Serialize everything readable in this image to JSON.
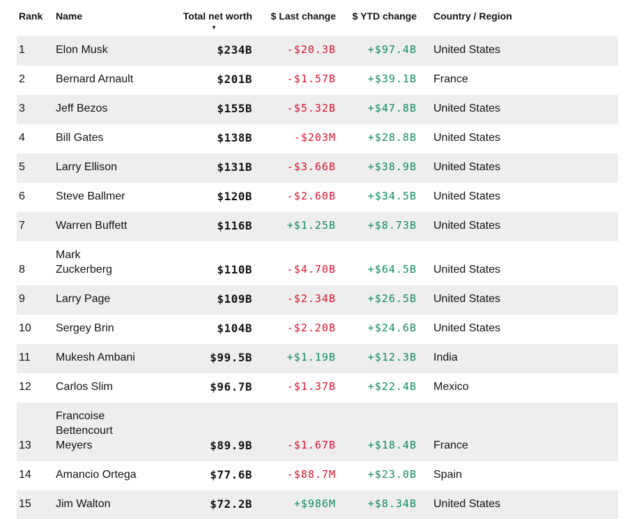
{
  "table": {
    "columns": [
      "Rank",
      "Name",
      "Total net worth",
      "$ Last change",
      "$ YTD change",
      "Country / Region"
    ],
    "sort": {
      "column": "Total net worth",
      "direction": "descending",
      "icon": "▼"
    },
    "rows": [
      {
        "rank": "1",
        "name": "Elon Musk",
        "net_worth": "$234B",
        "last_change": "-$20.3B",
        "last_dir": "down",
        "ytd_change": "+$97.4B",
        "ytd_dir": "up",
        "country": "United States"
      },
      {
        "rank": "2",
        "name": "Bernard Arnault",
        "net_worth": "$201B",
        "last_change": "-$1.57B",
        "last_dir": "down",
        "ytd_change": "+$39.1B",
        "ytd_dir": "up",
        "country": "France"
      },
      {
        "rank": "3",
        "name": "Jeff Bezos",
        "net_worth": "$155B",
        "last_change": "-$5.32B",
        "last_dir": "down",
        "ytd_change": "+$47.8B",
        "ytd_dir": "up",
        "country": "United States"
      },
      {
        "rank": "4",
        "name": "Bill Gates",
        "net_worth": "$138B",
        "last_change": "-$203M",
        "last_dir": "down",
        "ytd_change": "+$28.8B",
        "ytd_dir": "up",
        "country": "United States"
      },
      {
        "rank": "5",
        "name": "Larry Ellison",
        "net_worth": "$131B",
        "last_change": "-$3.66B",
        "last_dir": "down",
        "ytd_change": "+$38.9B",
        "ytd_dir": "up",
        "country": "United States"
      },
      {
        "rank": "6",
        "name": "Steve Ballmer",
        "net_worth": "$120B",
        "last_change": "-$2.60B",
        "last_dir": "down",
        "ytd_change": "+$34.5B",
        "ytd_dir": "up",
        "country": "United States"
      },
      {
        "rank": "7",
        "name": "Warren Buffett",
        "net_worth": "$116B",
        "last_change": "+$1.25B",
        "last_dir": "up",
        "ytd_change": "+$8.73B",
        "ytd_dir": "up",
        "country": "United States"
      },
      {
        "rank": "8",
        "name": "Mark\nZuckerberg",
        "net_worth": "$110B",
        "last_change": "-$4.70B",
        "last_dir": "down",
        "ytd_change": "+$64.5B",
        "ytd_dir": "up",
        "country": "United States"
      },
      {
        "rank": "9",
        "name": "Larry Page",
        "net_worth": "$109B",
        "last_change": "-$2.34B",
        "last_dir": "down",
        "ytd_change": "+$26.5B",
        "ytd_dir": "up",
        "country": "United States"
      },
      {
        "rank": "10",
        "name": "Sergey Brin",
        "net_worth": "$104B",
        "last_change": "-$2.20B",
        "last_dir": "down",
        "ytd_change": "+$24.6B",
        "ytd_dir": "up",
        "country": "United States"
      },
      {
        "rank": "11",
        "name": "Mukesh Ambani",
        "net_worth": "$99.5B",
        "last_change": "+$1.19B",
        "last_dir": "up",
        "ytd_change": "+$12.3B",
        "ytd_dir": "up",
        "country": "India"
      },
      {
        "rank": "12",
        "name": "Carlos Slim",
        "net_worth": "$96.7B",
        "last_change": "-$1.37B",
        "last_dir": "down",
        "ytd_change": "+$22.4B",
        "ytd_dir": "up",
        "country": "Mexico"
      },
      {
        "rank": "13",
        "name": "Francoise\nBettencourt\nMeyers",
        "net_worth": "$89.9B",
        "last_change": "-$1.67B",
        "last_dir": "down",
        "ytd_change": "+$18.4B",
        "ytd_dir": "up",
        "country": "France"
      },
      {
        "rank": "14",
        "name": "Amancio Ortega",
        "net_worth": "$77.6B",
        "last_change": "-$88.7M",
        "last_dir": "down",
        "ytd_change": "+$23.0B",
        "ytd_dir": "up",
        "country": "Spain"
      },
      {
        "rank": "15",
        "name": "Jim Walton",
        "net_worth": "$72.2B",
        "last_change": "+$986M",
        "last_dir": "up",
        "ytd_change": "+$8.34B",
        "ytd_dir": "up",
        "country": "United States"
      }
    ]
  },
  "colors": {
    "negative": "#e0112e",
    "positive": "#0d8a5f",
    "stripe": "#eeeeee",
    "text": "#121212"
  }
}
